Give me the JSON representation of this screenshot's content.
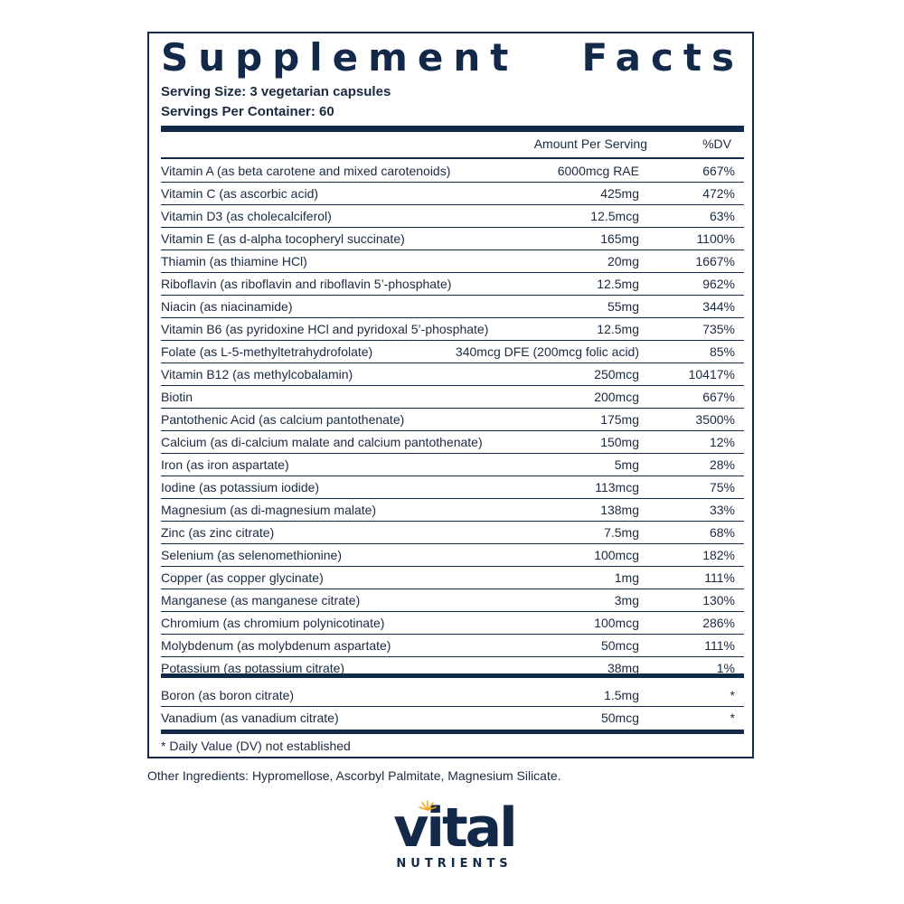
{
  "panel": {
    "title_words": [
      "Supplement",
      "Facts"
    ],
    "serving_size": "Serving Size: 3 vegetarian capsules",
    "servings_per_container": "Servings Per Container: 60",
    "header": {
      "amount": "Amount Per Serving",
      "dv": "%DV"
    },
    "nutrients": [
      {
        "name": "Vitamin A (as beta carotene and mixed carotenoids)",
        "amount": "6000mcg RAE",
        "dv": "667%"
      },
      {
        "name": "Vitamin C (as ascorbic acid)",
        "amount": "425mg",
        "dv": "472%"
      },
      {
        "name": "Vitamin D3 (as cholecalciferol)",
        "amount": "12.5mcg",
        "dv": "63%"
      },
      {
        "name": "Vitamin E (as d-alpha tocopheryl succinate)",
        "amount": "165mg",
        "dv": "1100%"
      },
      {
        "name": "Thiamin (as thiamine HCl)",
        "amount": "20mg",
        "dv": "1667%"
      },
      {
        "name": "Riboflavin (as riboflavin and riboflavin 5’-phosphate)",
        "amount": "12.5mg",
        "dv": "962%"
      },
      {
        "name": "Niacin (as niacinamide)",
        "amount": "55mg",
        "dv": "344%"
      },
      {
        "name": "Vitamin B6 (as pyridoxine HCl and pyridoxal 5’-phosphate)",
        "amount": "12.5mg",
        "dv": "735%"
      },
      {
        "name": "Folate (as L-5-methyltetrahydrofolate)",
        "amount": "340mcg DFE (200mcg folic acid)",
        "dv": "85%"
      },
      {
        "name": "Vitamin B12 (as methylcobalamin)",
        "amount": "250mcg",
        "dv": "10417%"
      },
      {
        "name": "Biotin",
        "amount": "200mcg",
        "dv": "667%"
      },
      {
        "name": "Pantothenic Acid (as calcium pantothenate)",
        "amount": "175mg",
        "dv": "3500%"
      },
      {
        "name": "Calcium (as di-calcium malate and calcium pantothenate)",
        "amount": "150mg",
        "dv": "12%"
      },
      {
        "name": "Iron (as iron aspartate)",
        "amount": "5mg",
        "dv": "28%"
      },
      {
        "name": "Iodine (as potassium iodide)",
        "amount": "113mcg",
        "dv": "75%"
      },
      {
        "name": "Magnesium (as di-magnesium malate)",
        "amount": "138mg",
        "dv": "33%"
      },
      {
        "name": "Zinc (as zinc citrate)",
        "amount": "7.5mg",
        "dv": "68%"
      },
      {
        "name": "Selenium (as selenomethionine)",
        "amount": "100mcg",
        "dv": "182%"
      },
      {
        "name": "Copper (as copper glycinate)",
        "amount": "1mg",
        "dv": "111%"
      },
      {
        "name": "Manganese (as manganese citrate)",
        "amount": "3mg",
        "dv": "130%"
      },
      {
        "name": "Chromium (as chromium polynicotinate)",
        "amount": "100mcg",
        "dv": "286%"
      },
      {
        "name": "Molybdenum (as molybdenum aspartate)",
        "amount": "50mcg",
        "dv": "111%"
      },
      {
        "name": "Potassium (as potassium citrate)",
        "amount": "38mg",
        "dv": "1%"
      }
    ],
    "other_nutrients": [
      {
        "name": "Boron (as boron citrate)",
        "amount": "1.5mg",
        "dv": "*"
      },
      {
        "name": "Vanadium (as vanadium citrate)",
        "amount": "50mcg",
        "dv": "*"
      }
    ],
    "footnote": "* Daily Value (DV) not established"
  },
  "other_ingredients": "Other Ingredients: Hypromellose, Ascorbyl Palmitate, Magnesium Silicate.",
  "brand": {
    "word": "vital",
    "subword": "NUTRIENTS"
  },
  "colors": {
    "navy": "#13294a",
    "sun": "#f2a81d"
  }
}
